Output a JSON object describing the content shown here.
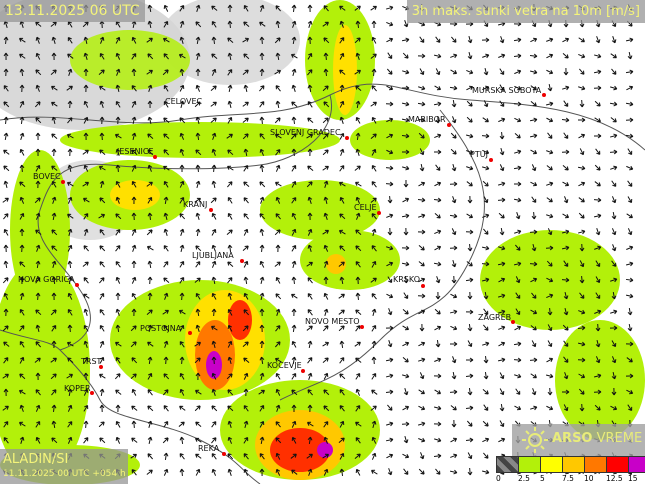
{
  "header": {
    "datetime": "13.11.2025 06 UTC",
    "parameter": "3h maks. sunki vetra na 10m [m/s]"
  },
  "model": {
    "name": "ALADIN/SI",
    "run": "11.11.2025 00 UTC +054 h"
  },
  "brand": {
    "bold": "ARSO",
    "light": " VREME",
    "icon": "sun-logo-icon"
  },
  "legend": {
    "colors": [
      "#555555",
      "#b3f00a",
      "#ffff00",
      "#ffc800",
      "#ff7800",
      "#ff0000",
      "#c800c8"
    ],
    "ticks": [
      "0",
      "2.5",
      "5",
      "7.5",
      "10",
      "12.5",
      "15"
    ]
  },
  "cities": [
    {
      "name": "CELOVEC"
    },
    {
      "name": "SLOVENJ GRADEC"
    },
    {
      "name": "MURSKA SOBOTA"
    },
    {
      "name": "MARIBOR"
    },
    {
      "name": "PTUJ"
    },
    {
      "name": "JESENICE"
    },
    {
      "name": "BOVEC"
    },
    {
      "name": "KRANJ"
    },
    {
      "name": "CELJE"
    },
    {
      "name": "LJUBLJANA"
    },
    {
      "name": "NOVA GORICA"
    },
    {
      "name": "KRSKO"
    },
    {
      "name": "ZAGREB"
    },
    {
      "name": "POSTOJNA"
    },
    {
      "name": "NOVO MESTO"
    },
    {
      "name": "KOCEVJE"
    },
    {
      "name": "TRST"
    },
    {
      "name": "KOPER"
    },
    {
      "name": "REKA"
    }
  ]
}
